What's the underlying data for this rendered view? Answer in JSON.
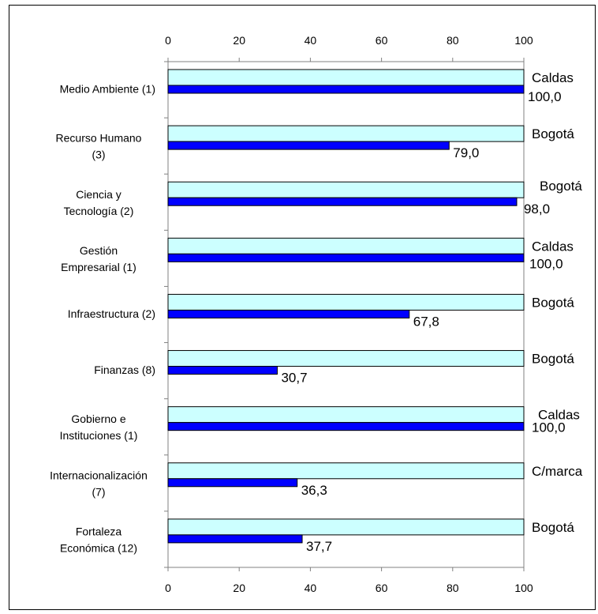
{
  "chart_data": {
    "type": "bar",
    "orientation": "horizontal",
    "title": "",
    "xlabel": "",
    "ylabel": "",
    "xlim": [
      0,
      100
    ],
    "xticks": [
      "0",
      "20",
      "40",
      "60",
      "80",
      "100"
    ],
    "grid": false,
    "legend": "none",
    "categories": [
      "Medio Ambiente (1)",
      "Recurso Humano (3)",
      "Ciencia y Tecnología (2)",
      "Gestión Empresarial (1)",
      "Infraestructura (2)",
      "Finanzas (8)",
      "Gobierno e Instituciones (1)",
      "Internacionalización (7)",
      "Fortaleza Económica (12)"
    ],
    "category_lines": [
      [
        "Medio Ambiente (1)"
      ],
      [
        "Recurso Humano",
        "(3)"
      ],
      [
        "Ciencia y",
        "Tecnología (2)"
      ],
      [
        "Gestión",
        "Empresarial (1)"
      ],
      [
        "Infraestructura (2)"
      ],
      [
        "Finanzas (8)"
      ],
      [
        "Gobierno e",
        "Instituciones (1)"
      ],
      [
        "Internacionalización",
        "(7)"
      ],
      [
        "Fortaleza",
        "Económica (12)"
      ]
    ],
    "series": [
      {
        "values": [
          100,
          100,
          100,
          100,
          100,
          100,
          100,
          100,
          100
        ],
        "labels": [
          "Caldas",
          "Bogotá",
          "Bogotá",
          "Caldas",
          "Bogotá",
          "Bogotá",
          "Caldas",
          "C/marca",
          "Bogotá"
        ],
        "color": "#ccffff"
      },
      {
        "values": [
          100.0,
          79.0,
          98.0,
          100.0,
          67.8,
          30.7,
          100.0,
          36.3,
          37.7
        ],
        "labels": [
          "100,0",
          "79,0",
          "98,0",
          "100,0",
          "67,8",
          "30,7",
          "100,0",
          "36,3",
          "37,7"
        ],
        "color": "#0000ff"
      }
    ]
  }
}
